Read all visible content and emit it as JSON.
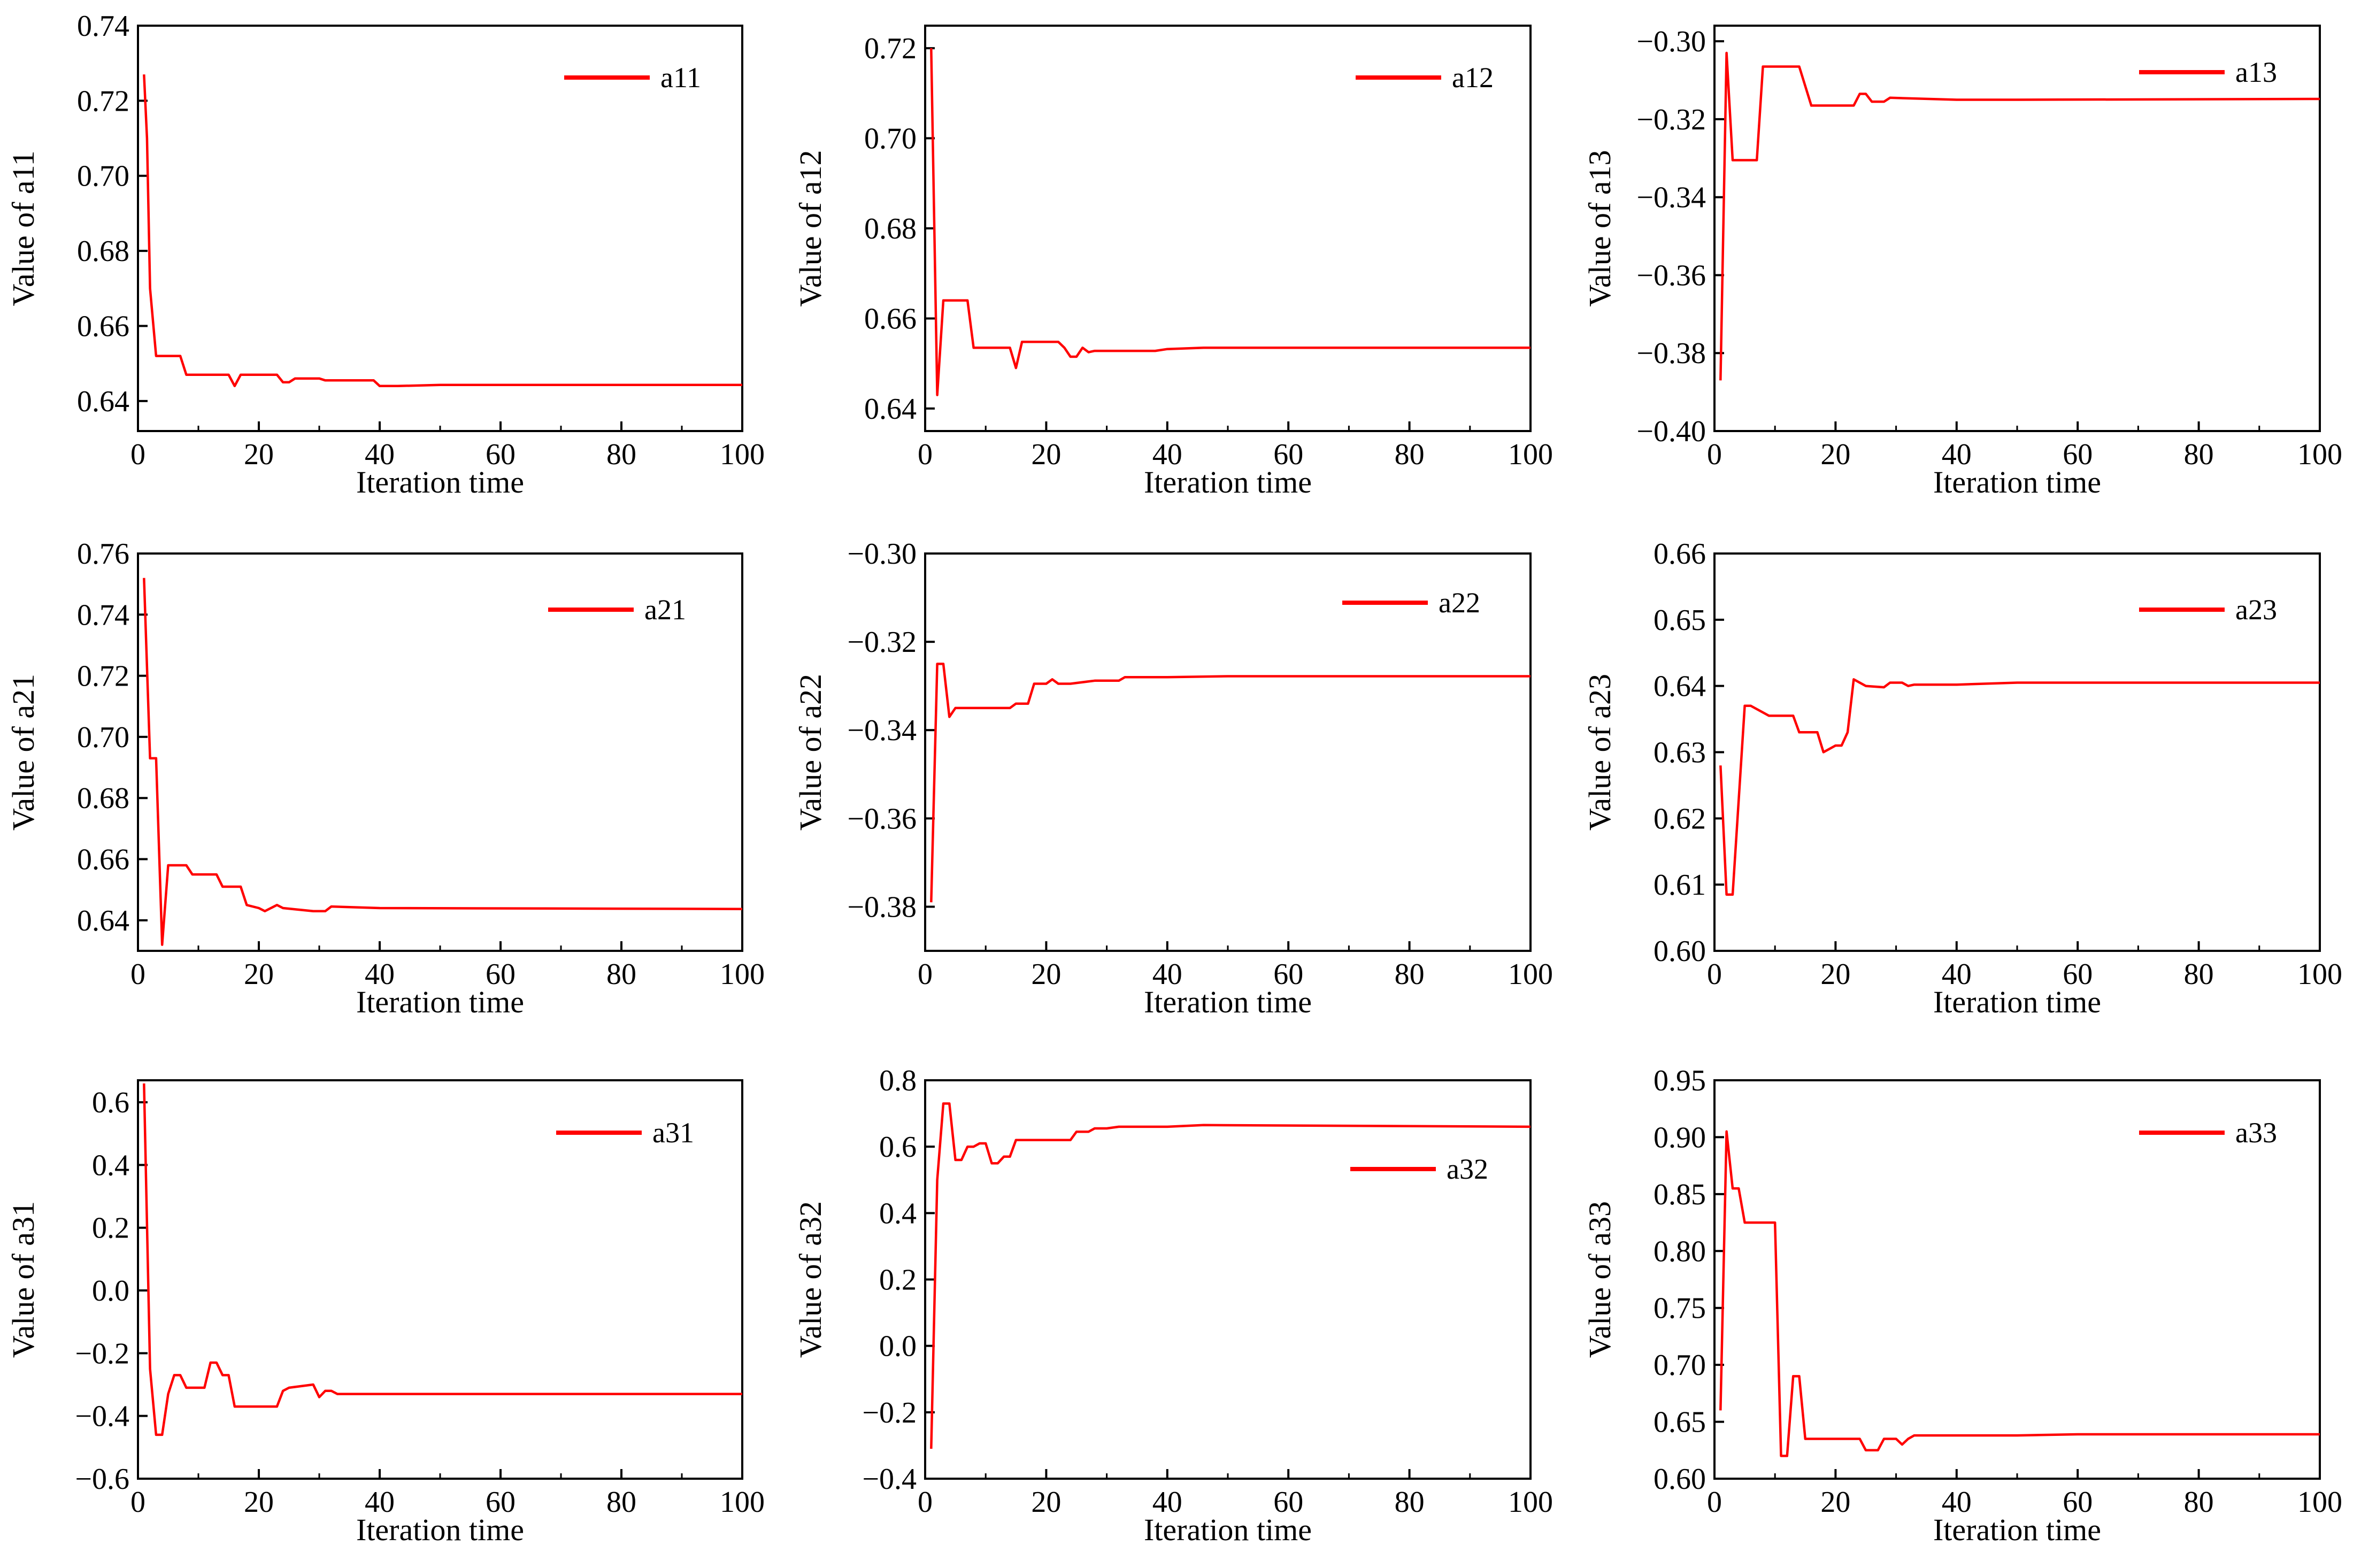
{
  "figure": {
    "colors": {
      "line": "#ff0000",
      "axis": "#000000",
      "background": "#ffffff"
    }
  },
  "chart_data": [
    {
      "type": "line",
      "id": "a11",
      "xlabel": "Iteration time",
      "ylabel": "Value of a11",
      "xlim": [
        0,
        100
      ],
      "ylim": [
        0.632,
        0.74
      ],
      "xticks": [
        0,
        20,
        40,
        60,
        80,
        100
      ],
      "yticks": [
        0.64,
        0.66,
        0.68,
        0.7,
        0.72,
        0.74
      ],
      "xtick_labels": [
        "0",
        "20",
        "40",
        "60",
        "80",
        "100"
      ],
      "ytick_labels": [
        "0.64",
        "0.66",
        "0.68",
        "0.70",
        "0.72",
        "0.74"
      ],
      "legend": "top-right",
      "series": [
        {
          "name": "a11",
          "color": "#ff0000",
          "x": [
            1,
            1.5,
            2,
            3,
            7,
            8,
            15,
            16,
            17,
            23,
            24,
            25,
            26,
            27,
            30,
            31,
            39,
            40,
            43,
            50,
            100
          ],
          "y": [
            0.727,
            0.71,
            0.67,
            0.652,
            0.652,
            0.647,
            0.647,
            0.644,
            0.647,
            0.647,
            0.645,
            0.645,
            0.646,
            0.646,
            0.646,
            0.6455,
            0.6455,
            0.644,
            0.644,
            0.6443,
            0.6443
          ]
        }
      ]
    },
    {
      "type": "line",
      "id": "a12",
      "xlabel": "Iteration time",
      "ylabel": "Value of a12",
      "xlim": [
        0,
        100
      ],
      "ylim": [
        0.635,
        0.725
      ],
      "xticks": [
        0,
        20,
        40,
        60,
        80,
        100
      ],
      "yticks": [
        0.64,
        0.66,
        0.68,
        0.7,
        0.72
      ],
      "xtick_labels": [
        "0",
        "20",
        "40",
        "60",
        "80",
        "100"
      ],
      "ytick_labels": [
        "0.64",
        "0.66",
        "0.68",
        "0.70",
        "0.72"
      ],
      "legend": "top-right",
      "series": [
        {
          "name": "a12",
          "color": "#ff0000",
          "x": [
            1,
            2,
            3,
            7,
            8,
            14,
            15,
            16,
            22,
            23,
            24,
            25,
            26,
            27,
            28,
            38,
            40,
            46,
            48,
            55,
            100
          ],
          "y": [
            0.72,
            0.643,
            0.664,
            0.664,
            0.6535,
            0.6535,
            0.649,
            0.6548,
            0.6548,
            0.6535,
            0.6515,
            0.6515,
            0.6535,
            0.6525,
            0.6528,
            0.6528,
            0.6532,
            0.6535,
            0.6535,
            0.6535,
            0.6535
          ]
        }
      ]
    },
    {
      "type": "line",
      "id": "a13",
      "xlabel": "Iteration time",
      "ylabel": "Value of a13",
      "xlim": [
        0,
        100
      ],
      "ylim": [
        -0.4,
        -0.296
      ],
      "xticks": [
        0,
        20,
        40,
        60,
        80,
        100
      ],
      "yticks": [
        -0.4,
        -0.38,
        -0.36,
        -0.34,
        -0.32,
        -0.3
      ],
      "xtick_labels": [
        "0",
        "20",
        "40",
        "60",
        "80",
        "100"
      ],
      "ytick_labels": [
        "−0.40",
        "−0.38",
        "−0.36",
        "−0.34",
        "−0.32",
        "−0.30"
      ],
      "legend": "top-right",
      "series": [
        {
          "name": "a13",
          "color": "#ff0000",
          "x": [
            1,
            2,
            3,
            7,
            8,
            14,
            16,
            23,
            24,
            25,
            26,
            28,
            29,
            40,
            50,
            100
          ],
          "y": [
            -0.387,
            -0.303,
            -0.3305,
            -0.3305,
            -0.3065,
            -0.3065,
            -0.3165,
            -0.3165,
            -0.3135,
            -0.3135,
            -0.3155,
            -0.3155,
            -0.3145,
            -0.315,
            -0.315,
            -0.3148
          ]
        }
      ]
    },
    {
      "type": "line",
      "id": "a21",
      "xlabel": "Iteration time",
      "ylabel": "Value of a21",
      "xlim": [
        0,
        100
      ],
      "ylim": [
        0.63,
        0.76
      ],
      "xticks": [
        0,
        20,
        40,
        60,
        80,
        100
      ],
      "yticks": [
        0.64,
        0.66,
        0.68,
        0.7,
        0.72,
        0.74,
        0.76
      ],
      "xtick_labels": [
        "0",
        "20",
        "40",
        "60",
        "80",
        "100"
      ],
      "ytick_labels": [
        "0.64",
        "0.66",
        "0.68",
        "0.70",
        "0.72",
        "0.74",
        "0.76"
      ],
      "legend": "top-right",
      "series": [
        {
          "name": "a21",
          "color": "#ff0000",
          "x": [
            1,
            2,
            3,
            4,
            5,
            8,
            9,
            13,
            14,
            17,
            18,
            20,
            21,
            23,
            24,
            29,
            30,
            31,
            32,
            40,
            100
          ],
          "y": [
            0.752,
            0.693,
            0.693,
            0.632,
            0.658,
            0.658,
            0.655,
            0.655,
            0.651,
            0.651,
            0.645,
            0.644,
            0.643,
            0.645,
            0.644,
            0.643,
            0.643,
            0.643,
            0.6445,
            0.644,
            0.6437
          ]
        }
      ]
    },
    {
      "type": "line",
      "id": "a22",
      "xlabel": "Iteration time",
      "ylabel": "Value of a22",
      "xlim": [
        0,
        100
      ],
      "ylim": [
        -0.39,
        -0.3
      ],
      "xticks": [
        0,
        20,
        40,
        60,
        80,
        100
      ],
      "yticks": [
        -0.38,
        -0.36,
        -0.34,
        -0.32,
        -0.3
      ],
      "xtick_labels": [
        "0",
        "20",
        "40",
        "60",
        "80",
        "100"
      ],
      "ytick_labels": [
        "−0.38",
        "−0.36",
        "−0.34",
        "−0.32",
        "−0.30"
      ],
      "legend": "top-right",
      "series": [
        {
          "name": "a22",
          "color": "#ff0000",
          "x": [
            1,
            2,
            3,
            4,
            5,
            6,
            14,
            15,
            17,
            18,
            20,
            21,
            22,
            24,
            28,
            32,
            33,
            40,
            50,
            100
          ],
          "y": [
            -0.379,
            -0.325,
            -0.325,
            -0.337,
            -0.335,
            -0.335,
            -0.335,
            -0.334,
            -0.334,
            -0.3295,
            -0.3295,
            -0.3285,
            -0.3295,
            -0.3295,
            -0.3288,
            -0.3288,
            -0.328,
            -0.328,
            -0.3278,
            -0.3278
          ]
        }
      ]
    },
    {
      "type": "line",
      "id": "a23",
      "xlabel": "Iteration time",
      "ylabel": "Value of a23",
      "xlim": [
        0,
        100
      ],
      "ylim": [
        0.6,
        0.66
      ],
      "xticks": [
        0,
        20,
        40,
        60,
        80,
        100
      ],
      "yticks": [
        0.6,
        0.61,
        0.62,
        0.63,
        0.64,
        0.65,
        0.66
      ],
      "xtick_labels": [
        "0",
        "20",
        "40",
        "60",
        "80",
        "100"
      ],
      "ytick_labels": [
        "0.60",
        "0.61",
        "0.62",
        "0.63",
        "0.64",
        "0.65",
        "0.66"
      ],
      "legend": "top-right",
      "series": [
        {
          "name": "a23",
          "color": "#ff0000",
          "x": [
            1,
            2,
            3,
            5,
            6,
            9,
            10,
            13,
            14,
            17,
            18,
            20,
            21,
            22,
            23,
            24,
            25,
            28,
            29,
            31,
            32,
            33,
            40,
            50,
            100
          ],
          "y": [
            0.628,
            0.6085,
            0.6085,
            0.637,
            0.637,
            0.6355,
            0.6355,
            0.6355,
            0.633,
            0.633,
            0.63,
            0.631,
            0.631,
            0.633,
            0.641,
            0.6405,
            0.64,
            0.6398,
            0.6405,
            0.6405,
            0.64,
            0.6402,
            0.6402,
            0.6405,
            0.6405
          ]
        }
      ]
    },
    {
      "type": "line",
      "id": "a31",
      "xlabel": "Iteration time",
      "ylabel": "Value of a31",
      "xlim": [
        0,
        100
      ],
      "ylim": [
        -0.6,
        0.67
      ],
      "xticks": [
        0,
        20,
        40,
        60,
        80,
        100
      ],
      "yticks": [
        -0.6,
        -0.4,
        -0.2,
        0.0,
        0.2,
        0.4,
        0.6
      ],
      "xtick_labels": [
        "0",
        "20",
        "40",
        "60",
        "80",
        "100"
      ],
      "ytick_labels": [
        "−0.6",
        "−0.4",
        "−0.2",
        "0.0",
        "0.2",
        "0.4",
        "0.6"
      ],
      "legend": "top-right",
      "series": [
        {
          "name": "a31",
          "color": "#ff0000",
          "x": [
            1,
            2,
            3,
            4,
            5,
            6,
            7,
            8,
            10,
            11,
            12,
            13,
            14,
            15,
            16,
            23,
            24,
            25,
            29,
            30,
            31,
            32,
            33,
            40,
            100
          ],
          "y": [
            0.66,
            -0.25,
            -0.46,
            -0.46,
            -0.33,
            -0.27,
            -0.27,
            -0.31,
            -0.31,
            -0.31,
            -0.23,
            -0.23,
            -0.27,
            -0.27,
            -0.37,
            -0.37,
            -0.32,
            -0.31,
            -0.3,
            -0.34,
            -0.32,
            -0.32,
            -0.33,
            -0.33,
            -0.33
          ]
        }
      ]
    },
    {
      "type": "line",
      "id": "a32",
      "xlabel": "Iteration time",
      "ylabel": "Value of a32",
      "xlim": [
        0,
        100
      ],
      "ylim": [
        -0.4,
        0.8
      ],
      "xticks": [
        0,
        20,
        40,
        60,
        80,
        100
      ],
      "yticks": [
        -0.4,
        -0.2,
        0.0,
        0.2,
        0.4,
        0.6,
        0.8
      ],
      "xtick_labels": [
        "0",
        "20",
        "40",
        "60",
        "80",
        "100"
      ],
      "ytick_labels": [
        "−0.4",
        "−0.2",
        "0.0",
        "0.2",
        "0.4",
        "0.6",
        "0.8"
      ],
      "legend": "top-right",
      "series": [
        {
          "name": "a32",
          "color": "#ff0000",
          "x": [
            1,
            2,
            3,
            4,
            5,
            6,
            7,
            8,
            9,
            10,
            11,
            12,
            13,
            14,
            15,
            16,
            24,
            25,
            27,
            28,
            30,
            32,
            36,
            40,
            46,
            100
          ],
          "y": [
            -0.31,
            0.5,
            0.73,
            0.73,
            0.56,
            0.56,
            0.6,
            0.6,
            0.61,
            0.61,
            0.55,
            0.55,
            0.57,
            0.57,
            0.62,
            0.62,
            0.62,
            0.645,
            0.645,
            0.655,
            0.655,
            0.66,
            0.66,
            0.66,
            0.665,
            0.66
          ]
        }
      ]
    },
    {
      "type": "line",
      "id": "a33",
      "xlabel": "Iteration time",
      "ylabel": "Value of a33",
      "xlim": [
        0,
        100
      ],
      "ylim": [
        0.6,
        0.95
      ],
      "xticks": [
        0,
        20,
        40,
        60,
        80,
        100
      ],
      "yticks": [
        0.6,
        0.65,
        0.7,
        0.75,
        0.8,
        0.85,
        0.9,
        0.95
      ],
      "xtick_labels": [
        "0",
        "20",
        "40",
        "60",
        "80",
        "100"
      ],
      "ytick_labels": [
        "0.60",
        "0.65",
        "0.70",
        "0.75",
        "0.80",
        "0.85",
        "0.90",
        "0.95"
      ],
      "legend": "top-right",
      "series": [
        {
          "name": "a33",
          "color": "#ff0000",
          "x": [
            1,
            2,
            3,
            4,
            5,
            6,
            10,
            11,
            12,
            13,
            14,
            15,
            16,
            24,
            25,
            26,
            27,
            28,
            30,
            31,
            32,
            33,
            40,
            50,
            60,
            100
          ],
          "y": [
            0.66,
            0.905,
            0.855,
            0.855,
            0.825,
            0.825,
            0.825,
            0.62,
            0.62,
            0.69,
            0.69,
            0.635,
            0.635,
            0.635,
            0.625,
            0.625,
            0.625,
            0.635,
            0.635,
            0.63,
            0.635,
            0.638,
            0.638,
            0.638,
            0.639,
            0.639
          ]
        }
      ]
    }
  ]
}
